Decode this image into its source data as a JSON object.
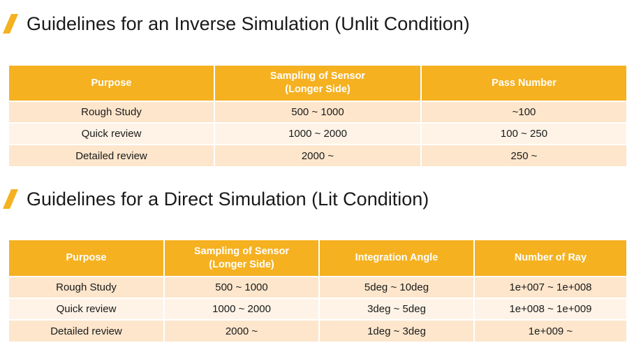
{
  "section1": {
    "title": "Guidelines for an Inverse Simulation (Unlit Condition)",
    "headers": {
      "purpose": "Purpose",
      "sampling_line1": "Sampling of Sensor",
      "sampling_line2": "(Longer Side)",
      "pass": "Pass Number"
    },
    "rows": [
      {
        "purpose": "Rough Study",
        "sampling": "500 ~ 1000",
        "pass": "~100"
      },
      {
        "purpose": "Quick review",
        "sampling": "1000 ~ 2000",
        "pass": "100 ~ 250"
      },
      {
        "purpose": "Detailed review",
        "sampling": "2000 ~",
        "pass": "250 ~"
      }
    ]
  },
  "section2": {
    "title": "Guidelines for a Direct Simulation (Lit Condition)",
    "headers": {
      "purpose": "Purpose",
      "sampling_line1": "Sampling of Sensor",
      "sampling_line2": "(Longer Side)",
      "angle": "Integration Angle",
      "rays": "Number of Ray"
    },
    "rows": [
      {
        "purpose": "Rough Study",
        "sampling": "500 ~ 1000",
        "angle": "5deg ~ 10deg",
        "rays": "1e+007 ~ 1e+008"
      },
      {
        "purpose": "Quick review",
        "sampling": "1000 ~ 2000",
        "angle": "3deg ~ 5deg",
        "rays": "1e+008 ~ 1e+009"
      },
      {
        "purpose": "Detailed review",
        "sampling": "2000 ~",
        "angle": "1deg ~ 3deg",
        "rays": "1e+009 ~"
      }
    ]
  },
  "colors": {
    "accent": "#f5b120",
    "row_dark": "#fde6cc",
    "row_light": "#fef3e6"
  },
  "icons": {
    "title_marker": "slash-accent-icon"
  }
}
